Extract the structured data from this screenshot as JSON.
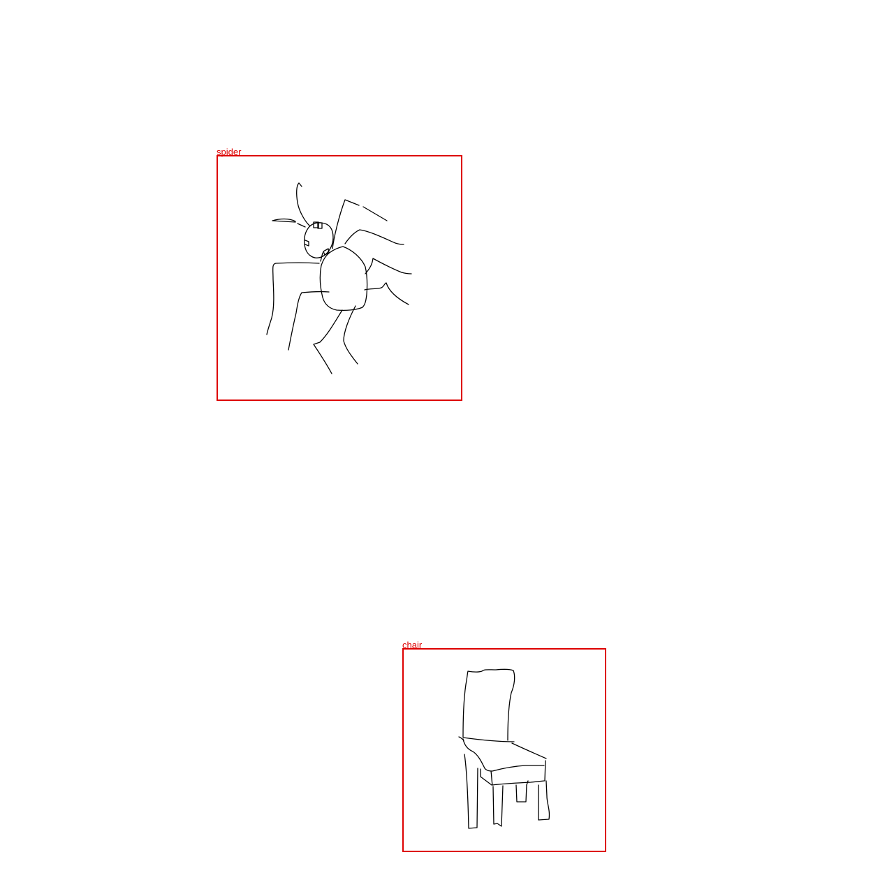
{
  "colors": {
    "background": "#ffffff",
    "box": "#dd0000",
    "stroke": "#000000"
  },
  "detections": [
    {
      "label": "spider"
    },
    {
      "label": "chair"
    }
  ]
}
